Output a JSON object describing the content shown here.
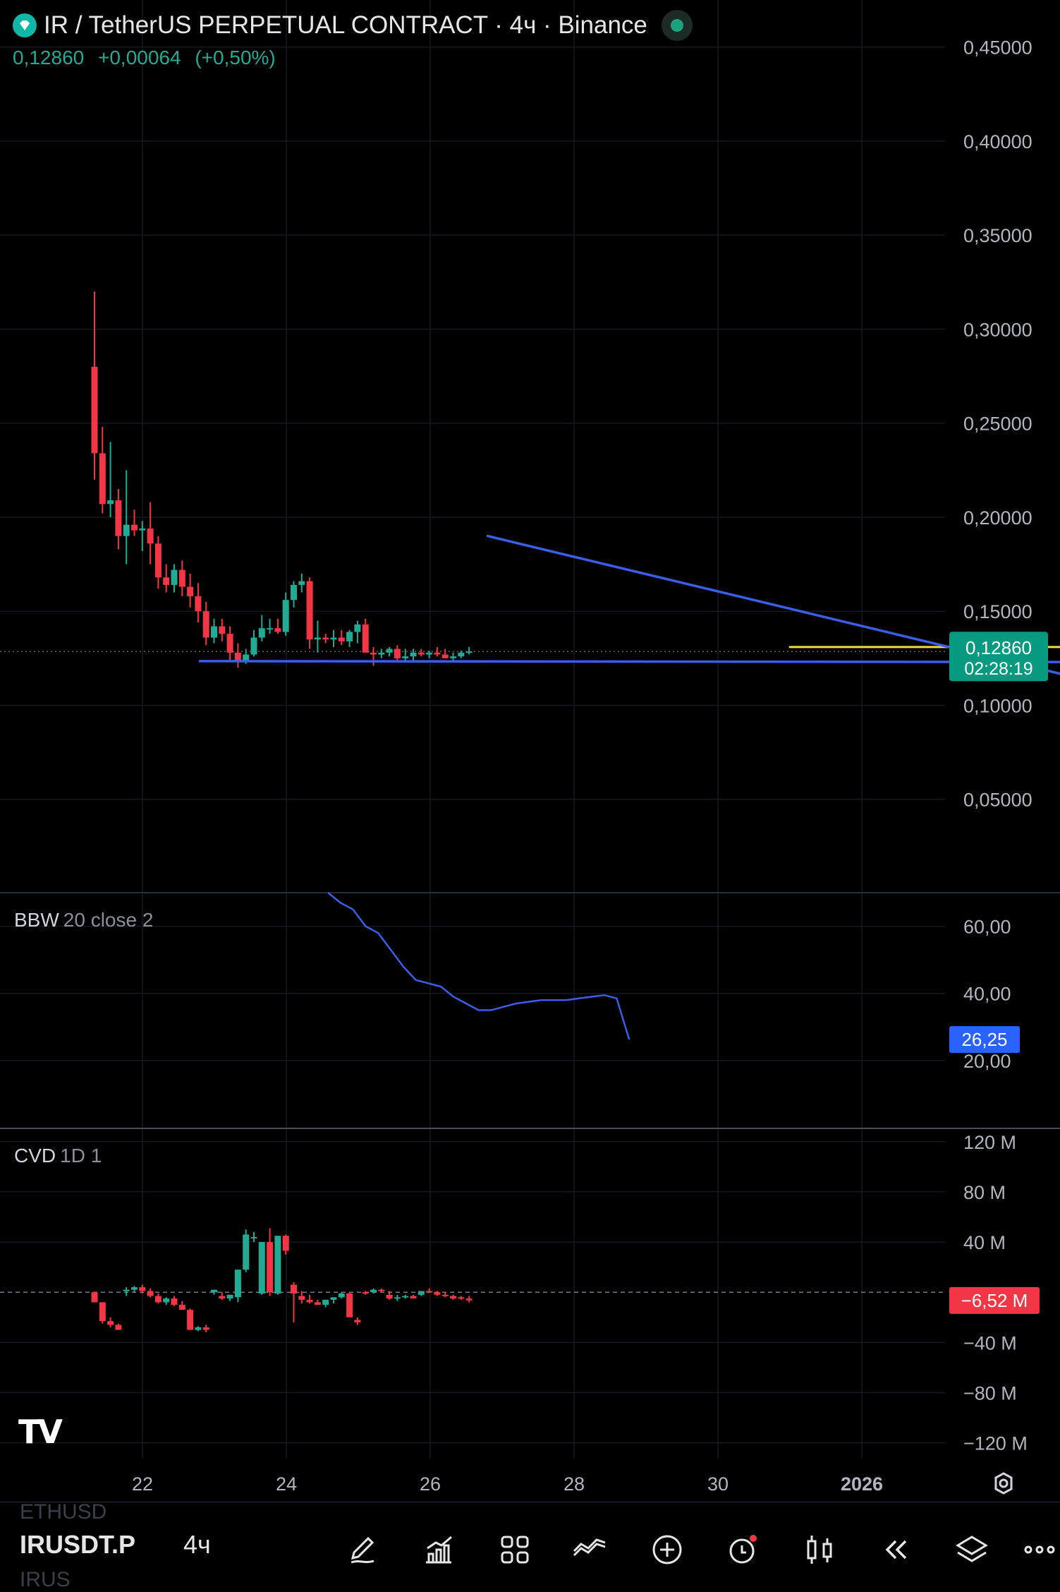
{
  "header": {
    "title": "IR / TetherUS PERPETUAL CONTRACT · 4ч · Binance",
    "last": "0,12860",
    "change": "+0,00064",
    "change_pct": "(+0,50%)"
  },
  "colors": {
    "up": "#22ab94",
    "down": "#f23645",
    "trendline": "#3b5ee8",
    "hline": "#f5d742",
    "background": "#000000"
  },
  "chart_data": [
    {
      "type": "candlestick",
      "title": "IR / TetherUS PERPETUAL CONTRACT · 4ч · Binance",
      "x_ticks": [
        "22",
        "24",
        "26",
        "28",
        "30",
        "2026"
      ],
      "y_ticks": [
        "0,45000",
        "0,40000",
        "0,35000",
        "0,30000",
        "0,25000",
        "0,20000",
        "0,15000",
        "0,10000",
        "0,05000"
      ],
      "ylim": [
        0.0,
        0.475
      ],
      "last_price": {
        "value": "0,12860",
        "countdown": "02:28:19",
        "price": 0.1286
      },
      "candles": [
        [
          0.28,
          0.32,
          0.22,
          0.234
        ],
        [
          0.234,
          0.248,
          0.202,
          0.207
        ],
        [
          0.207,
          0.24,
          0.2,
          0.209
        ],
        [
          0.209,
          0.215,
          0.183,
          0.19
        ],
        [
          0.19,
          0.225,
          0.175,
          0.196
        ],
        [
          0.196,
          0.204,
          0.19,
          0.193
        ],
        [
          0.193,
          0.198,
          0.182,
          0.194
        ],
        [
          0.194,
          0.208,
          0.175,
          0.186
        ],
        [
          0.186,
          0.19,
          0.162,
          0.168
        ],
        [
          0.168,
          0.175,
          0.16,
          0.164
        ],
        [
          0.164,
          0.175,
          0.16,
          0.172
        ],
        [
          0.172,
          0.177,
          0.158,
          0.163
        ],
        [
          0.163,
          0.17,
          0.152,
          0.158
        ],
        [
          0.158,
          0.165,
          0.144,
          0.15
        ],
        [
          0.15,
          0.155,
          0.132,
          0.136
        ],
        [
          0.136,
          0.146,
          0.133,
          0.142
        ],
        [
          0.142,
          0.146,
          0.134,
          0.138
        ],
        [
          0.138,
          0.142,
          0.124,
          0.128
        ],
        [
          0.128,
          0.133,
          0.12,
          0.124
        ],
        [
          0.124,
          0.13,
          0.122,
          0.127
        ],
        [
          0.127,
          0.14,
          0.126,
          0.136
        ],
        [
          0.136,
          0.148,
          0.134,
          0.141
        ],
        [
          0.141,
          0.146,
          0.138,
          0.141
        ],
        [
          0.141,
          0.146,
          0.138,
          0.139
        ],
        [
          0.139,
          0.16,
          0.137,
          0.156
        ],
        [
          0.156,
          0.166,
          0.152,
          0.164
        ],
        [
          0.164,
          0.17,
          0.16,
          0.166
        ],
        [
          0.166,
          0.168,
          0.13,
          0.135
        ],
        [
          0.135,
          0.145,
          0.128,
          0.136
        ],
        [
          0.136,
          0.138,
          0.133,
          0.135
        ],
        [
          0.135,
          0.14,
          0.131,
          0.136
        ],
        [
          0.136,
          0.14,
          0.132,
          0.134
        ],
        [
          0.134,
          0.14,
          0.131,
          0.139
        ],
        [
          0.139,
          0.145,
          0.133,
          0.143
        ],
        [
          0.143,
          0.146,
          0.13,
          0.128
        ],
        [
          0.128,
          0.131,
          0.121,
          0.127
        ],
        [
          0.127,
          0.13,
          0.125,
          0.128
        ],
        [
          0.128,
          0.131,
          0.126,
          0.13
        ],
        [
          0.13,
          0.132,
          0.124,
          0.125
        ],
        [
          0.125,
          0.13,
          0.124,
          0.126
        ],
        [
          0.126,
          0.13,
          0.124,
          0.128
        ],
        [
          0.128,
          0.13,
          0.126,
          0.127
        ],
        [
          0.127,
          0.129,
          0.125,
          0.128
        ],
        [
          0.128,
          0.131,
          0.126,
          0.127
        ],
        [
          0.127,
          0.13,
          0.125,
          0.125
        ],
        [
          0.125,
          0.128,
          0.124,
          0.126
        ],
        [
          0.126,
          0.129,
          0.125,
          0.128
        ],
        [
          0.128,
          0.131,
          0.127,
          0.1286
        ]
      ],
      "drawings": {
        "support_line": [
          [
            22.4,
            0.1235
          ],
          [
            30.9,
            0.1228
          ]
        ],
        "descending_trendline": [
          [
            24.4,
            0.19
          ],
          [
            29.4,
            0.098
          ]
        ],
        "horizontal_level": [
          [
            26.5,
            0.131
          ],
          [
            30.0,
            0.131
          ]
        ]
      }
    },
    {
      "type": "line",
      "title": "BBW",
      "params": "20 close 2",
      "y_ticks": [
        "60,00",
        "40,00",
        "20,00"
      ],
      "ylim": [
        0,
        70
      ],
      "last": {
        "label": "26,25",
        "value": 26.25
      },
      "values": [
        70,
        67,
        65,
        60,
        58,
        53,
        48,
        44,
        43,
        42,
        39,
        37,
        35,
        35,
        36,
        37,
        37.5,
        38,
        38,
        38,
        38.5,
        39,
        39.5,
        38.5,
        26.25
      ]
    },
    {
      "type": "bar",
      "title": "CVD",
      "params": "1D 1",
      "y_ticks": [
        "120 M",
        "80 M",
        "40 M",
        "−40 M",
        "−80 M",
        "−120 M"
      ],
      "ylim": [
        -132,
        130
      ],
      "last": {
        "label": "−6,52 M",
        "value": -6.52
      },
      "candles": [
        [
          0,
          -2,
          -8,
          -8
        ],
        [
          -8,
          -8,
          -25,
          -23
        ],
        [
          -23,
          -20,
          -28,
          -26
        ],
        [
          -26,
          -25,
          -30,
          -30
        ],
        [
          2,
          4,
          -3,
          2
        ],
        [
          2,
          5,
          0,
          4
        ],
        [
          4,
          6,
          -1,
          1
        ],
        [
          1,
          3,
          -4,
          -3
        ],
        [
          -3,
          -1,
          -9,
          -8
        ],
        [
          -8,
          -4,
          -10,
          -5
        ],
        [
          -5,
          -3,
          -11,
          -10
        ],
        [
          -10,
          -7,
          -14,
          -14
        ],
        [
          -14,
          -13,
          -30,
          -30
        ],
        [
          -30,
          -27,
          -31,
          -28
        ],
        [
          -28,
          -26,
          -32,
          -30
        ],
        [
          0,
          2,
          -2,
          2
        ],
        [
          -3,
          0,
          -6,
          -5
        ],
        [
          -5,
          -2,
          -7,
          -2
        ],
        [
          -4,
          18,
          -8,
          18
        ],
        [
          18,
          50,
          16,
          46
        ],
        [
          44,
          48,
          40,
          44
        ],
        [
          -1,
          40,
          -2,
          40
        ],
        [
          40,
          51,
          -3,
          0
        ],
        [
          -1,
          45,
          -2,
          45
        ],
        [
          45,
          46,
          30,
          33
        ],
        [
          6,
          8,
          -24,
          -1
        ],
        [
          -3,
          1,
          -9,
          -6
        ],
        [
          -6,
          -2,
          -9,
          -8
        ],
        [
          -8,
          -6,
          -10,
          -10
        ],
        [
          -10,
          -6,
          -12,
          -6
        ],
        [
          -6,
          -4,
          -9,
          -4
        ],
        [
          -4,
          0,
          -5,
          -1
        ],
        [
          -1,
          0,
          -20,
          -20
        ],
        [
          -22,
          -20,
          -26,
          -24
        ],
        [
          0,
          1,
          -2,
          -1
        ],
        [
          0,
          3,
          -1,
          2
        ],
        [
          2,
          3,
          0,
          1
        ],
        [
          -2,
          1,
          -6,
          -5
        ],
        [
          -5,
          -2,
          -7,
          -4
        ],
        [
          -4,
          -2,
          -5,
          -3
        ],
        [
          -3,
          -2,
          -5,
          -5
        ],
        [
          -2,
          1,
          -3,
          1
        ],
        [
          1,
          3,
          0,
          0
        ],
        [
          0,
          1,
          -3,
          -2
        ],
        [
          -2,
          0,
          -4,
          -3
        ],
        [
          -3,
          -2,
          -6,
          -5
        ],
        [
          -4,
          -3,
          -6,
          -5
        ],
        [
          -5,
          -3,
          -8,
          -6.52
        ]
      ]
    }
  ],
  "toolbar": {
    "symbol": "IRUSDT.P",
    "ghost_above": "ETHUSD",
    "ghost_below": "IRUS",
    "timeframe": "4ч",
    "icons": [
      "pencil-icon",
      "indicators-icon",
      "grid-icon",
      "compare-icon",
      "add-icon",
      "alert-icon",
      "candles-icon",
      "replay-icon",
      "layers-icon",
      "more-icon"
    ]
  }
}
